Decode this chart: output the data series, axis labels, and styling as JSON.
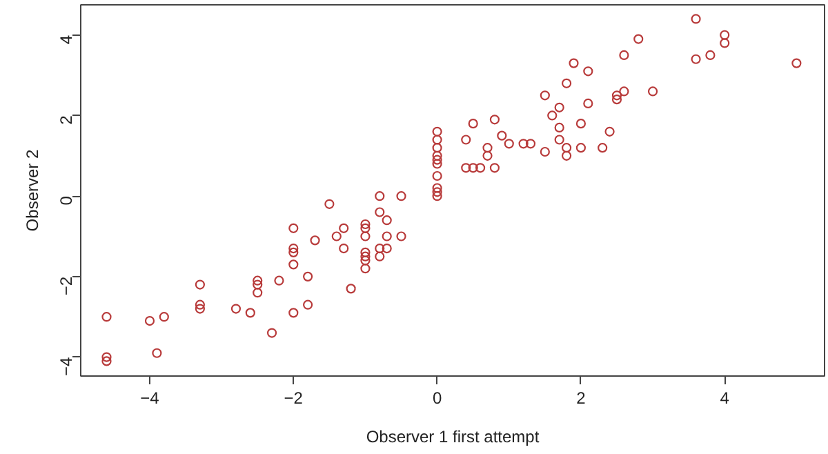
{
  "chart_data": {
    "type": "scatter",
    "xlabel": "Observer 1 first attempt",
    "ylabel": "Observer 2",
    "marker": "circle",
    "grid": false,
    "xlim": [
      -4.96,
      5.39
    ],
    "ylim": [
      -4.47,
      4.75
    ],
    "xticks": [
      -4,
      -2,
      0,
      2,
      4
    ],
    "yticks": [
      -4,
      -2,
      0,
      2,
      4
    ],
    "series": [
      {
        "color": "#b83a3a",
        "x": [
          -4.6,
          -4.6,
          -4.6,
          -4,
          -3.9,
          -3.8,
          -3.3,
          -3.3,
          -3.3,
          -2.8,
          -2.6,
          -2.5,
          -2.5,
          -2.5,
          -2.3,
          -2.2,
          -2,
          -2,
          -2,
          -2,
          -2,
          -1.8,
          -1.8,
          -1.7,
          -1.5,
          -1.4,
          -1.3,
          -1.3,
          -1.2,
          -1,
          -1,
          -1,
          -1,
          -1,
          -1,
          -1,
          -0.8,
          -0.8,
          -0.8,
          -0.8,
          -0.7,
          -0.7,
          -0.7,
          -0.5,
          -0.5,
          0,
          0,
          0,
          0,
          0,
          0,
          0,
          0,
          0,
          0,
          0.4,
          0.4,
          0.5,
          0.6,
          0.5,
          0.7,
          0.7,
          0.8,
          0.8,
          0.9,
          1.0,
          1.2,
          1.3,
          1.5,
          1.5,
          1.6,
          1.7,
          1.7,
          1.7,
          1.8,
          1.8,
          1.8,
          1.9,
          2.0,
          2.0,
          2.1,
          2.1,
          2.3,
          2.4,
          2.5,
          2.5,
          2.6,
          2.6,
          2.8,
          3.0,
          3.6,
          3.6,
          3.8,
          4.0,
          4.0,
          5.0
        ],
        "values": [
          -3.0,
          -4.0,
          -4.1,
          -3.1,
          -3.9,
          -3.0,
          -2.2,
          -2.7,
          -2.8,
          -2.8,
          -2.9,
          -2.1,
          -2.2,
          -2.4,
          -3.4,
          -2.1,
          -0.8,
          -1.3,
          -1.4,
          -1.7,
          -2.9,
          -2.0,
          -2.7,
          -1.1,
          -0.2,
          -1.0,
          -0.8,
          -1.3,
          -2.3,
          -0.7,
          -0.8,
          -1.0,
          -1.4,
          -1.5,
          -1.6,
          -1.8,
          0,
          -0.4,
          -1.3,
          -1.5,
          -0.6,
          -1.0,
          -1.3,
          0,
          -1.0,
          1.6,
          1.4,
          1.2,
          1.0,
          0.9,
          0.8,
          0.5,
          0.2,
          0.1,
          0.0,
          1.4,
          0.7,
          0.7,
          0.7,
          1.8,
          1.2,
          1.0,
          1.9,
          0.7,
          1.5,
          1.3,
          1.3,
          1.3,
          2.5,
          1.1,
          2.0,
          2.2,
          1.7,
          1.4,
          2.8,
          1.2,
          1.0,
          3.3,
          1.8,
          1.2,
          3.1,
          2.3,
          1.2,
          1.6,
          2.5,
          2.4,
          2.6,
          3.5,
          3.9,
          2.6,
          4.4,
          3.4,
          3.5,
          4.0,
          3.8,
          3.3
        ]
      }
    ]
  }
}
